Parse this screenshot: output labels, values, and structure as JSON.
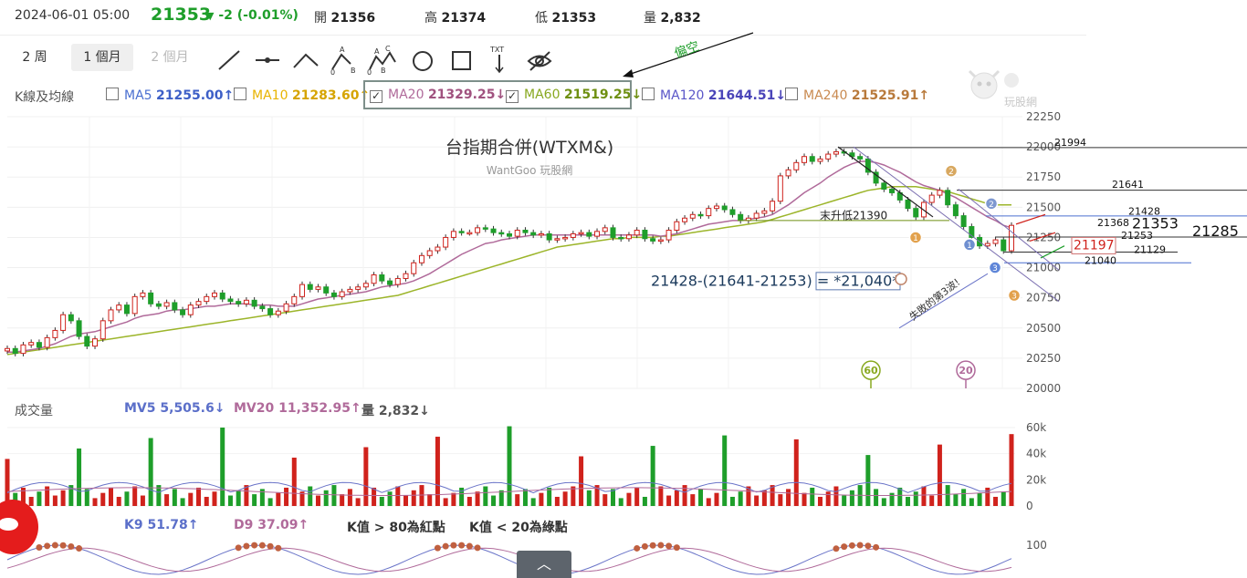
{
  "header": {
    "datetime": "2024-06-01 05:00",
    "price": "21353",
    "change": "-2 (-0.01%)",
    "open_label": "開",
    "open": "21356",
    "high_label": "高",
    "high": "21374",
    "low_label": "低",
    "low": "21353",
    "volume_label": "量",
    "volume": "2,832"
  },
  "toolbar": {
    "periods": [
      "2 周",
      "1 個月",
      "2 個月"
    ],
    "annotation_note": "偏空"
  },
  "ma_row": {
    "label": "K線及均線",
    "items": [
      {
        "name": "MA5",
        "value": "21255.00↑",
        "checked": false,
        "name_color": "#4a6fd0",
        "value_color": "#3d5fc7"
      },
      {
        "name": "MA10",
        "value": "21283.60↑",
        "checked": false,
        "name_color": "#e8b400",
        "value_color": "#d6a400"
      },
      {
        "name": "MA20",
        "value": "21329.25↓",
        "checked": true,
        "name_color": "#b06a9a",
        "value_color": "#a0527f"
      },
      {
        "name": "MA60",
        "value": "21519.25↓",
        "checked": true,
        "name_color": "#88a820",
        "value_color": "#6e8f10"
      },
      {
        "name": "MA120",
        "value": "21644.51↓",
        "checked": false,
        "name_color": "#5a56c8",
        "value_color": "#4a44b8"
      },
      {
        "name": "MA240",
        "value": "21525.91↑",
        "checked": false,
        "name_color": "#c98a50",
        "value_color": "#b87a3c"
      }
    ]
  },
  "chart_data": {
    "type": "candlestick",
    "title": "台指期合併(WTXM&)",
    "subtitle": "WantGoo 玩股網",
    "yticks": [
      22250,
      22000,
      21750,
      21500,
      21250,
      21000,
      20750,
      20500,
      20250,
      20000
    ],
    "ylim": [
      20000,
      22250
    ],
    "closes": [
      20330,
      20290,
      20360,
      20380,
      20340,
      20420,
      20480,
      20610,
      20560,
      20430,
      20350,
      20410,
      20560,
      20650,
      20690,
      20620,
      20760,
      20790,
      20700,
      20680,
      20710,
      20650,
      20610,
      20690,
      20720,
      20760,
      20790,
      20740,
      20720,
      20700,
      20730,
      20680,
      20660,
      20610,
      20640,
      20700,
      20760,
      20860,
      20820,
      20840,
      20790,
      20760,
      20800,
      20820,
      20840,
      20870,
      20940,
      20890,
      20860,
      20910,
      20950,
      21040,
      21100,
      21140,
      21170,
      21250,
      21300,
      21290,
      21290,
      21330,
      21320,
      21290,
      21280,
      21260,
      21310,
      21290,
      21270,
      21280,
      21230,
      21240,
      21250,
      21280,
      21290,
      21260,
      21300,
      21330,
      21250,
      21240,
      21270,
      21310,
      21240,
      21220,
      21230,
      21310,
      21380,
      21410,
      21440,
      21430,
      21490,
      21510,
      21480,
      21440,
      21390,
      21410,
      21450,
      21470,
      21550,
      21760,
      21810,
      21870,
      21920,
      21880,
      21900,
      21940,
      21960,
      21950,
      21920,
      21900,
      21790,
      21700,
      21650,
      21620,
      21560,
      21490,
      21420,
      21540,
      21600,
      21640,
      21520,
      21430,
      21340,
      21250,
      21180,
      21200,
      21230,
      21140,
      21350
    ],
    "ma20": [
      20300,
      20300,
      20310,
      20320,
      20330,
      20350,
      20370,
      20400,
      20430,
      20450,
      20460,
      20470,
      20490,
      20510,
      20530,
      20550,
      20580,
      20600,
      20610,
      20620,
      20640,
      20650,
      20650,
      20660,
      20670,
      20680,
      20680,
      20690,
      20700,
      20700,
      20700,
      20690,
      20690,
      20690,
      20680,
      20680,
      20680,
      20700,
      20720,
      20740,
      20750,
      20760,
      20770,
      20780,
      20790,
      20800,
      20820,
      20840,
      20850,
      20860,
      20870,
      20890,
      20920,
      20950,
      20990,
      21030,
      21070,
      21110,
      21140,
      21170,
      21200,
      21210,
      21230,
      21240,
      21250,
      21260,
      21270,
      21270,
      21270,
      21270,
      21270,
      21270,
      21270,
      21270,
      21270,
      21270,
      21270,
      21270,
      21270,
      21270,
      21270,
      21270,
      21260,
      21270,
      21280,
      21300,
      21320,
      21340,
      21360,
      21370,
      21380,
      21390,
      21390,
      21400,
      21410,
      21420,
      21440,
      21480,
      21520,
      21570,
      21620,
      21660,
      21700,
      21750,
      21790,
      21830,
      21860,
      21880,
      21880,
      21870,
      21850,
      21820,
      21790,
      21750,
      21710,
      21680,
      21660,
      21640,
      21610,
      21580,
      21540,
      21500,
      21460,
      21420,
      21390,
      21350,
      21330
    ],
    "ma60": [
      20280,
      20290,
      20300,
      20310,
      20320,
      20330,
      20340,
      20350,
      20360,
      20370,
      20380,
      20390,
      20400,
      20410,
      20420,
      20430,
      20440,
      20450,
      20460,
      20470,
      20480,
      20490,
      20500,
      20510,
      20520,
      20530,
      20540,
      20550,
      20560,
      20570,
      20580,
      20590,
      20600,
      20610,
      20620,
      20630,
      20640,
      20650,
      20660,
      20670,
      20680,
      20690,
      20700,
      20710,
      20720,
      20730,
      20740,
      20750,
      20760,
      20770,
      20790,
      20810,
      20830,
      20850,
      20870,
      20890,
      20910,
      20930,
      20950,
      20970,
      20990,
      21010,
      21030,
      21050,
      21070,
      21090,
      21110,
      21130,
      21150,
      21170,
      21180,
      21190,
      21200,
      21210,
      21220,
      21230,
      21240,
      21240,
      21250,
      21250,
      21250,
      21250,
      21260,
      21260,
      21270,
      21280,
      21290,
      21300,
      21310,
      21320,
      21330,
      21340,
      21350,
      21360,
      21370,
      21380,
      21400,
      21420,
      21440,
      21460,
      21480,
      21500,
      21520,
      21540,
      21560,
      21580,
      21600,
      21620,
      21640,
      21650,
      21660,
      21670,
      21670,
      21670,
      21670,
      21660,
      21650,
      21640,
      21630,
      21610,
      21590,
      21570,
      21550,
      21530,
      21520,
      21520,
      21519
    ],
    "price_labels": [
      "21994",
      "21641",
      "21428",
      "21368",
      "21353",
      "21285",
      "21253",
      "21197",
      "21129",
      "21040"
    ],
    "annotations": {
      "last_rise_low": "末升低21390",
      "formula": "21428-(21641-21253) = *21,040*",
      "failed_wave": "失敗的第3波!",
      "ma60_tag": "60",
      "ma20_tag": "20",
      "wave_numbers": [
        "1",
        "2",
        "2",
        "1",
        "3",
        "3"
      ]
    }
  },
  "volume": {
    "label": "成交量",
    "mv5": "MV5 5,505.6↓",
    "mv20": "MV20 11,352.95↑",
    "vol": "量 2,832↓",
    "yticks": [
      "60k",
      "40k",
      "20k",
      "0"
    ]
  },
  "kd": {
    "k9": "K9 51.78↑",
    "d9": "D9 37.09↑",
    "note1": "K值 > 80為紅點",
    "note2": "K值 < 20為綠點",
    "ytick": "100"
  },
  "watermark": "玩股網"
}
